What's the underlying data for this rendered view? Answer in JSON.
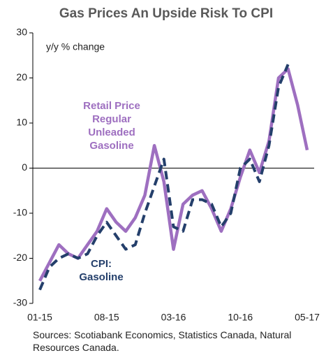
{
  "chart_data": {
    "type": "line",
    "title": "Gas Prices An Upside Risk To CPI",
    "y_label": "y/y % change",
    "source": "Sources: Scotiabank Economics, Statistics Canada, Natural Resources Canada.",
    "categories": [
      "01-15",
      null,
      null,
      null,
      null,
      null,
      null,
      "08-15",
      null,
      null,
      null,
      null,
      null,
      null,
      "03-16",
      null,
      null,
      null,
      null,
      null,
      null,
      "10-16",
      null,
      null,
      null,
      null,
      null,
      null,
      "05-17"
    ],
    "series": [
      {
        "name": "Retail Price Regular Unleaded Gasoline",
        "color": "#9e6fc0",
        "dash": false,
        "values": [
          -25,
          -21,
          -17,
          -19,
          -20,
          -17,
          -14,
          -9,
          -12,
          -14,
          -11,
          -6,
          5,
          -3,
          -18,
          -8,
          -6,
          -5,
          -9,
          -14,
          -9,
          -2,
          4,
          -1,
          6,
          20,
          22,
          14,
          4
        ]
      },
      {
        "name": "CPI: Gasoline",
        "color": "#243f6b",
        "dash": true,
        "values": [
          -27,
          -22,
          -20,
          -19,
          -20,
          -19,
          -15,
          -12,
          -15,
          -18,
          -17,
          -10,
          -4,
          2,
          -13,
          -14,
          -7,
          -7,
          -8,
          -13,
          -10,
          0,
          2,
          -3,
          5,
          18,
          23,
          null,
          null
        ]
      }
    ],
    "ylim": [
      -30,
      30
    ],
    "yticks": [
      -30,
      -20,
      -10,
      0,
      10,
      20,
      30
    ],
    "grid": false
  }
}
